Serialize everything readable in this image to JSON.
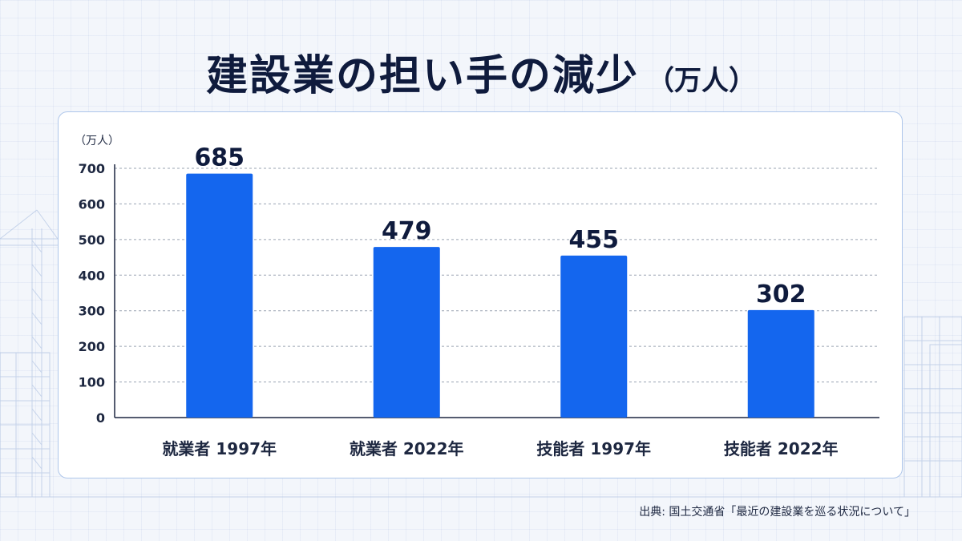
{
  "header": {
    "title": "建設業の担い手の減少",
    "title_unit": "（万人）"
  },
  "source": "出典: 国土交通省「最近の建設業を巡る状況について」",
  "colors": {
    "bar": "#1466ee",
    "title": "#0f1b3d",
    "gridline": "#9aa3b2"
  },
  "chart_data": {
    "type": "bar",
    "title": "建設業の担い手の減少（万人）",
    "ylabel": "（万人）",
    "xlabel": "",
    "categories": [
      "就業者  1997年",
      "就業者  2022年",
      "技能者  1997年",
      "技能者  2022年"
    ],
    "values": [
      685,
      479,
      455,
      302
    ],
    "data_labels": [
      "685",
      "479",
      "455",
      "302"
    ],
    "ylim": [
      0,
      700
    ],
    "yticks": [
      0,
      100,
      200,
      300,
      400,
      500,
      600,
      700
    ],
    "grid": true,
    "legend": "none"
  }
}
